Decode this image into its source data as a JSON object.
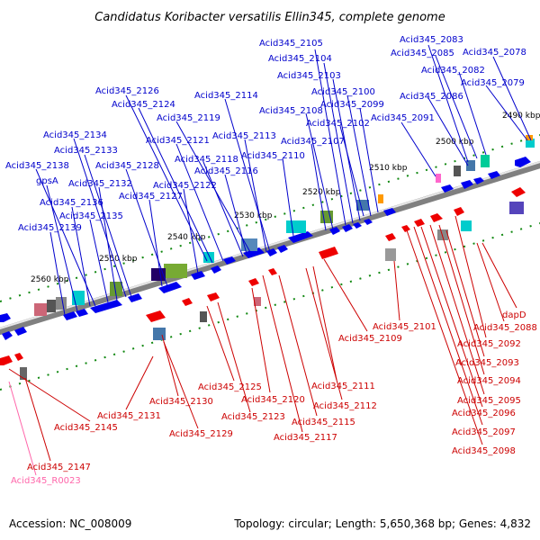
{
  "title": "Candidatus Koribacter versatilis Ellin345, complete genome",
  "footer": {
    "accession": "Accession: NC_008009",
    "topology": "Topology: circular; Length: 5,650,368 bp; Genes: 4,832"
  },
  "colors": {
    "forward_label": "#0000cc",
    "reverse_label": "#cc0000",
    "rna_label": "#ff66aa",
    "forward_arrow": "#0000ee",
    "reverse_arrow": "#ee0000",
    "backbone": "#808080",
    "tick_green": "#118811"
  },
  "ticks": [
    "2490 kbp",
    "2500 kbp",
    "2510 kbp",
    "2520 kbp",
    "2530 kbp",
    "2540 kbp",
    "2550 kbp",
    "2560 kbp"
  ],
  "forward_labels": [
    "Acid345_2105",
    "Acid345_2104",
    "Acid345_2103",
    "Acid345_2100",
    "Acid345_2099",
    "Acid345_2102",
    "Acid345_2108",
    "Acid345_2107",
    "Acid345_2110",
    "Acid345_2083",
    "Acid345_2085",
    "Acid345_2078",
    "Acid345_2082",
    "Acid345_2079",
    "Acid345_2086",
    "Acid345_2091",
    "Acid345_2126",
    "Acid345_2124",
    "Acid345_2114",
    "Acid345_2119",
    "Acid345_2121",
    "Acid345_2113",
    "Acid345_2118",
    "Acid345_2116",
    "Acid345_2134",
    "Acid345_2133",
    "Acid345_2138",
    "Acid345_2128",
    "gpsA",
    "Acid345_2132",
    "Acid345_2122",
    "Acid345_2127",
    "Acid345_2136",
    "Acid345_2135",
    "Acid345_2139"
  ],
  "reverse_labels": [
    "Acid345_2101",
    "Acid345_2109",
    "dapD",
    "Acid345_2088",
    "Acid345_2092",
    "Acid345_2093",
    "Acid345_2094",
    "Acid345_2095",
    "Acid345_2096",
    "Acid345_2097",
    "Acid345_2098",
    "Acid345_2125",
    "Acid345_2130",
    "Acid345_2120",
    "Acid345_2123",
    "Acid345_2111",
    "Acid345_2112",
    "Acid345_2115",
    "Acid345_2117",
    "Acid345_2131",
    "Acid345_2129",
    "Acid345_2145",
    "Acid345_2147"
  ],
  "rna_labels": [
    "Acid345_R0023"
  ]
}
